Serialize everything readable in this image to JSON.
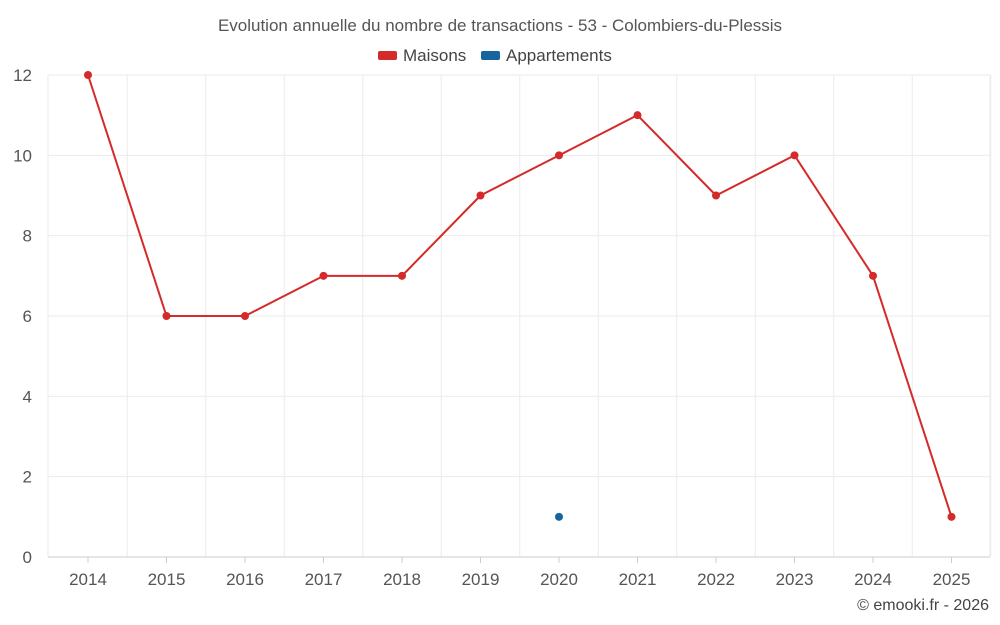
{
  "chart_data": {
    "type": "line",
    "title": "Evolution annuelle du nombre de transactions - 53 - Colombiers-du-Plessis",
    "categories": [
      "2014",
      "2015",
      "2016",
      "2017",
      "2018",
      "2019",
      "2020",
      "2021",
      "2022",
      "2023",
      "2024",
      "2025"
    ],
    "series": [
      {
        "name": "Maisons",
        "color": "#d42a2a",
        "values": [
          12,
          6,
          6,
          7,
          7,
          9,
          10,
          11,
          9,
          10,
          7,
          1
        ]
      },
      {
        "name": "Appartements",
        "color": "#1565a0",
        "values": [
          null,
          null,
          null,
          null,
          null,
          null,
          1,
          null,
          null,
          null,
          null,
          null
        ]
      }
    ],
    "yticks": [
      "0",
      "2",
      "4",
      "6",
      "8",
      "10",
      "12"
    ],
    "ylim": [
      0,
      12
    ],
    "grid": true,
    "legend_position": "top-center",
    "xlabel": "",
    "ylabel": ""
  },
  "credit": "© emooki.fr - 2026"
}
